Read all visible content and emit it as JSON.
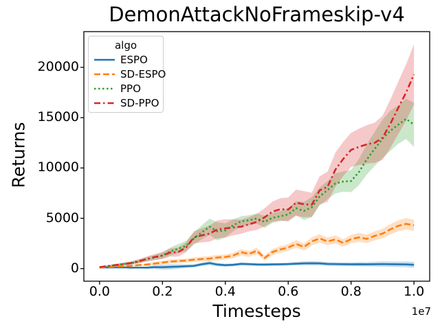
{
  "figure": {
    "title": "DemonAttackNoFrameskip-v4"
  },
  "axes": {
    "xlabel": "Timesteps",
    "ylabel": "Returns",
    "x_offset_label": "1e7",
    "xtick_labels": [
      "0.0",
      "0.2",
      "0.4",
      "0.6",
      "0.8",
      "1.0"
    ],
    "ytick_labels": [
      "0",
      "5000",
      "10000",
      "15000",
      "20000"
    ]
  },
  "legend": {
    "title": "algo"
  },
  "chart_data": {
    "type": "line",
    "title": "DemonAttackNoFrameskip-v4",
    "xlabel": "Timesteps",
    "ylabel": "Returns",
    "x_unit": "1e7 timesteps",
    "xlim": [
      -0.05,
      1.05
    ],
    "ylim": [
      -1250,
      23550
    ],
    "xticks": [
      0,
      0.2,
      0.4,
      0.6,
      0.8,
      1.0
    ],
    "yticks": [
      0,
      5000,
      10000,
      15000,
      20000
    ],
    "grid": false,
    "legend_title": "algo",
    "legend_position": "upper left",
    "band_alpha": 0.25,
    "x": [
      0,
      0.025,
      0.05,
      0.075,
      0.1,
      0.125,
      0.15,
      0.175,
      0.2,
      0.225,
      0.25,
      0.275,
      0.3,
      0.325,
      0.35,
      0.375,
      0.4,
      0.425,
      0.45,
      0.475,
      0.5,
      0.525,
      0.55,
      0.575,
      0.6,
      0.625,
      0.65,
      0.675,
      0.7,
      0.725,
      0.75,
      0.775,
      0.8,
      0.825,
      0.85,
      0.875,
      0.9,
      0.925,
      0.95,
      0.975,
      1.0
    ],
    "series": [
      {
        "name": "ESPO",
        "color": "#1f77b4",
        "style": "solid",
        "values": [
          100,
          110,
          120,
          130,
          90,
          100,
          95,
          150,
          140,
          170,
          200,
          240,
          270,
          430,
          550,
          400,
          340,
          380,
          470,
          440,
          410,
          400,
          420,
          430,
          450,
          490,
          520,
          530,
          520,
          460,
          450,
          440,
          430,
          440,
          430,
          440,
          450,
          440,
          430,
          420,
          380
        ],
        "band_halfwidth": [
          40,
          40,
          50,
          60,
          70,
          80,
          100,
          200,
          260,
          260,
          230,
          180,
          160,
          180,
          200,
          180,
          150,
          150,
          160,
          160,
          150,
          150,
          150,
          150,
          160,
          180,
          200,
          200,
          200,
          190,
          190,
          190,
          200,
          210,
          220,
          240,
          260,
          260,
          270,
          280,
          300
        ]
      },
      {
        "name": "SD-ESPO",
        "color": "#ff7f0e",
        "style": "dashed",
        "values": [
          100,
          160,
          200,
          250,
          280,
          350,
          400,
          500,
          600,
          700,
          750,
          800,
          890,
          950,
          1000,
          1100,
          1150,
          1300,
          1640,
          1450,
          1770,
          1050,
          1650,
          1900,
          2100,
          2450,
          2150,
          2700,
          3000,
          2700,
          2900,
          2550,
          2930,
          3100,
          2950,
          3250,
          3480,
          3900,
          4250,
          4450,
          4300
        ],
        "band_halfwidth": [
          50,
          60,
          70,
          80,
          90,
          100,
          120,
          150,
          180,
          200,
          200,
          200,
          220,
          230,
          250,
          260,
          260,
          280,
          300,
          280,
          320,
          250,
          300,
          320,
          330,
          380,
          350,
          400,
          420,
          380,
          400,
          380,
          420,
          450,
          420,
          450,
          480,
          520,
          550,
          580,
          550
        ]
      },
      {
        "name": "PPO",
        "color": "#2ca02c",
        "style": "dotted",
        "values": [
          150,
          250,
          350,
          450,
          550,
          700,
          950,
          1100,
          1300,
          1700,
          1980,
          2250,
          3000,
          3600,
          4160,
          3700,
          3800,
          4300,
          4700,
          4800,
          4980,
          4640,
          5050,
          5200,
          5390,
          6000,
          5730,
          6100,
          7170,
          7800,
          8460,
          8650,
          8700,
          9600,
          10850,
          11900,
          12900,
          13700,
          14300,
          14880,
          14300
        ],
        "band_halfwidth": [
          60,
          80,
          100,
          120,
          150,
          180,
          220,
          250,
          300,
          400,
          450,
          500,
          600,
          700,
          800,
          900,
          700,
          600,
          500,
          500,
          500,
          600,
          500,
          500,
          600,
          700,
          900,
          1000,
          900,
          900,
          1000,
          1000,
          1100,
          1300,
          1500,
          1700,
          1900,
          2000,
          1900,
          2000,
          2200
        ]
      },
      {
        "name": "SD-PPO",
        "color": "#d62728",
        "style": "dashdot",
        "values": [
          150,
          250,
          350,
          450,
          550,
          750,
          950,
          1150,
          1300,
          1600,
          1640,
          2100,
          3100,
          3300,
          3480,
          3900,
          4000,
          4100,
          4160,
          4400,
          4640,
          5100,
          5670,
          5900,
          5870,
          6550,
          6400,
          6350,
          7780,
          8120,
          9830,
          10900,
          11800,
          12100,
          12350,
          12500,
          13000,
          14400,
          15970,
          17500,
          19300
        ],
        "band_halfwidth": [
          60,
          80,
          100,
          130,
          160,
          200,
          250,
          300,
          350,
          400,
          450,
          500,
          600,
          700,
          800,
          900,
          900,
          800,
          700,
          700,
          800,
          900,
          1000,
          1100,
          1200,
          1300,
          1300,
          1200,
          1400,
          1500,
          1700,
          1700,
          1700,
          1800,
          1900,
          2000,
          2200,
          2400,
          2600,
          2800,
          3000
        ]
      }
    ]
  }
}
